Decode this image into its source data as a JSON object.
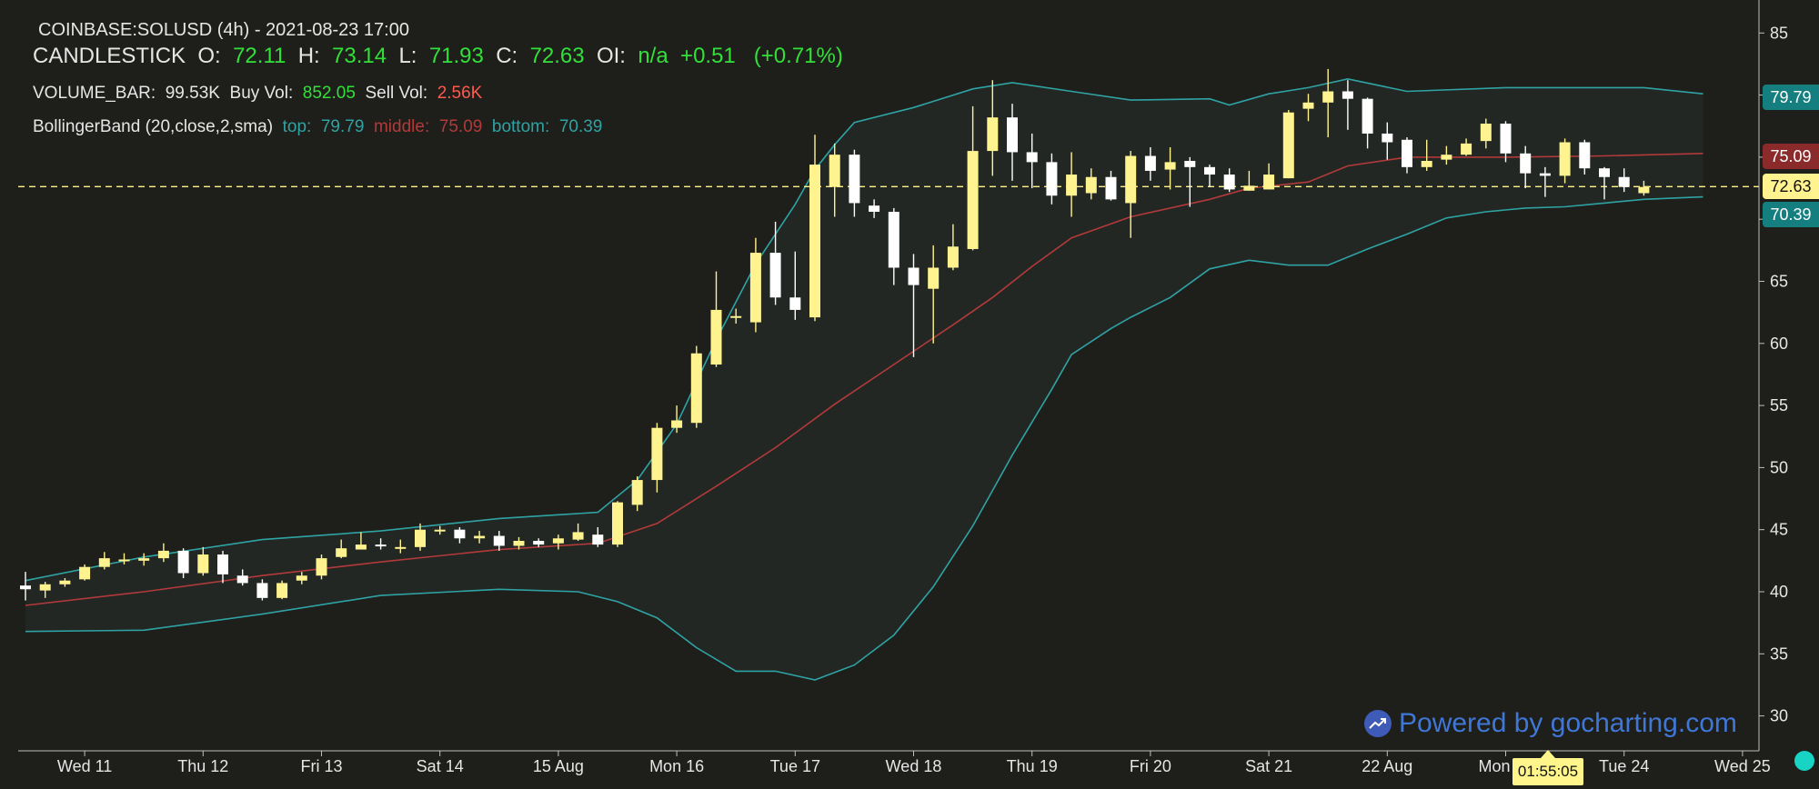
{
  "legend": {
    "symbol_line": "COINBASE:SOLUSD (4h) - 2021-08-23 17:00",
    "candle_label": "CANDLESTICK",
    "o_label": "O:",
    "o_value": "72.11",
    "h_label": "H:",
    "h_value": "73.14",
    "l_label": "L:",
    "l_value": "71.93",
    "c_label": "C:",
    "c_value": "72.63",
    "oi_label": "OI:",
    "oi_value": "n/a",
    "change": "+0.51",
    "change_pct": "(+0.71%)",
    "vol_label": "VOLUME_BAR:",
    "vol_value": "99.53K",
    "buy_label": "Buy Vol:",
    "buy_value": "852.05",
    "sell_label": "Sell Vol:",
    "sell_value": "2.56K",
    "bb_label": "BollingerBand (20,close,2,sma)",
    "bb_top_label": "top:",
    "bb_top": "79.79",
    "bb_mid_label": "middle:",
    "bb_mid": "75.09",
    "bb_bot_label": "bottom:",
    "bb_bot": "70.39"
  },
  "price_tags": {
    "top": "79.79",
    "middle": "75.09",
    "last": "72.63",
    "bottom": "70.39"
  },
  "crosshair_time": "01:55:05",
  "branding": "Powered by gocharting.com",
  "colors": {
    "background": "#1e1e1a",
    "bullish": "#fff38f",
    "bearish": "#ffffff",
    "band_outer": "#2fa3a4",
    "band_middle": "#b23a3a",
    "last_price": "#fff38f",
    "up_text": "#33e03a",
    "down_text": "#ff5a4e"
  },
  "chart_data": {
    "type": "candlestick",
    "title": "COINBASE:SOLUSD (4h)",
    "interval": "4h",
    "y_axis": {
      "min": 30,
      "max": 85,
      "ticks": [
        30,
        35,
        40,
        45,
        50,
        55,
        60,
        65,
        70,
        75,
        80,
        85
      ],
      "position": "right"
    },
    "x_axis": {
      "ticks": [
        {
          "label": "Wed 11",
          "index": 3
        },
        {
          "label": "Thu 12",
          "index": 9
        },
        {
          "label": "Fri 13",
          "index": 15
        },
        {
          "label": "Sat 14",
          "index": 21
        },
        {
          "label": "15 Aug",
          "index": 27
        },
        {
          "label": "Mon 16",
          "index": 33
        },
        {
          "label": "Tue 17",
          "index": 39
        },
        {
          "label": "Wed 18",
          "index": 45
        },
        {
          "label": "Thu 19",
          "index": 51
        },
        {
          "label": "Fri 20",
          "index": 57
        },
        {
          "label": "Sat 21",
          "index": 63
        },
        {
          "label": "22 Aug",
          "index": 69
        },
        {
          "label": "Mon 23",
          "index": 75
        },
        {
          "label": "Tue 24",
          "index": 81
        },
        {
          "label": "Wed 25",
          "index": 87
        }
      ]
    },
    "candles": [
      [
        40.5,
        40.2,
        41.6,
        39.3
      ],
      [
        40.1,
        40.6,
        40.8,
        39.5
      ],
      [
        40.6,
        40.9,
        41.1,
        40.4
      ],
      [
        41.0,
        42.0,
        42.2,
        40.9
      ],
      [
        42.0,
        42.7,
        43.2,
        41.8
      ],
      [
        42.6,
        42.6,
        43.1,
        42.2
      ],
      [
        42.5,
        42.7,
        43.1,
        42.1
      ],
      [
        42.7,
        43.3,
        43.9,
        42.4
      ],
      [
        43.3,
        41.5,
        43.5,
        41.1
      ],
      [
        41.5,
        43.0,
        43.6,
        41.3
      ],
      [
        43.0,
        41.4,
        43.3,
        40.7
      ],
      [
        41.3,
        40.7,
        41.8,
        40.5
      ],
      [
        40.7,
        39.5,
        41.0,
        39.3
      ],
      [
        39.5,
        40.7,
        40.9,
        39.4
      ],
      [
        40.9,
        41.3,
        41.6,
        40.6
      ],
      [
        41.3,
        42.7,
        43.0,
        41.0
      ],
      [
        42.8,
        43.5,
        44.2,
        42.7
      ],
      [
        43.4,
        43.8,
        44.8,
        43.4
      ],
      [
        43.8,
        43.7,
        44.3,
        43.4
      ],
      [
        43.6,
        43.6,
        44.2,
        43.1
      ],
      [
        43.6,
        45.0,
        45.5,
        43.3
      ],
      [
        45.0,
        45.0,
        45.3,
        44.6
      ],
      [
        45.0,
        44.3,
        45.2,
        43.9
      ],
      [
        44.3,
        44.5,
        44.9,
        43.9
      ],
      [
        44.5,
        43.7,
        44.9,
        43.3
      ],
      [
        43.7,
        44.1,
        44.4,
        43.4
      ],
      [
        44.1,
        43.8,
        44.3,
        43.6
      ],
      [
        43.9,
        44.3,
        44.6,
        43.4
      ],
      [
        44.2,
        44.8,
        45.5,
        44.1
      ],
      [
        44.6,
        43.8,
        45.2,
        43.6
      ],
      [
        43.8,
        47.2,
        47.3,
        43.6
      ],
      [
        47.0,
        49.0,
        49.3,
        46.5
      ],
      [
        49.0,
        53.2,
        53.6,
        48.0
      ],
      [
        53.2,
        53.8,
        55.0,
        52.8
      ],
      [
        53.6,
        59.2,
        59.8,
        53.2
      ],
      [
        58.3,
        62.7,
        65.8,
        58.1
      ],
      [
        62.1,
        62.2,
        62.8,
        61.6
      ],
      [
        61.7,
        67.3,
        68.5,
        60.9
      ],
      [
        67.3,
        63.7,
        69.8,
        63.1
      ],
      [
        63.7,
        62.7,
        67.4,
        61.9
      ],
      [
        62.1,
        74.4,
        76.8,
        61.8
      ],
      [
        72.6,
        75.2,
        76.1,
        70.2
      ],
      [
        75.2,
        71.3,
        75.6,
        70.2
      ],
      [
        71.1,
        70.6,
        71.6,
        70.1
      ],
      [
        70.6,
        66.1,
        70.9,
        64.7
      ],
      [
        66.1,
        64.7,
        67.2,
        58.9
      ],
      [
        64.4,
        66.1,
        67.9,
        60.0
      ],
      [
        66.1,
        67.8,
        69.6,
        65.9
      ],
      [
        67.6,
        75.5,
        79.1,
        67.5
      ],
      [
        75.5,
        78.2,
        81.2,
        73.5
      ],
      [
        78.2,
        75.4,
        79.3,
        73.1
      ],
      [
        75.4,
        74.6,
        76.9,
        72.5
      ],
      [
        74.6,
        71.9,
        75.3,
        71.2
      ],
      [
        71.9,
        73.6,
        75.4,
        70.2
      ],
      [
        72.1,
        73.4,
        74.1,
        71.6
      ],
      [
        73.4,
        71.6,
        73.9,
        71.5
      ],
      [
        71.3,
        75.1,
        75.5,
        68.5
      ],
      [
        75.1,
        73.9,
        75.8,
        73.1
      ],
      [
        74.0,
        74.6,
        75.8,
        72.4
      ],
      [
        74.7,
        74.2,
        75.0,
        71.0
      ],
      [
        74.2,
        73.6,
        74.4,
        72.6
      ],
      [
        73.6,
        72.4,
        74.1,
        72.2
      ],
      [
        72.3,
        72.7,
        73.9,
        72.3
      ],
      [
        72.4,
        73.6,
        74.5,
        72.4
      ],
      [
        73.3,
        78.6,
        78.8,
        73.3
      ],
      [
        78.9,
        79.4,
        80.1,
        77.9
      ],
      [
        79.4,
        80.3,
        82.1,
        76.6
      ],
      [
        80.3,
        79.7,
        81.2,
        77.2
      ],
      [
        79.7,
        76.9,
        79.8,
        75.7
      ],
      [
        76.9,
        76.2,
        77.8,
        74.8
      ],
      [
        76.4,
        74.2,
        76.6,
        73.7
      ],
      [
        74.2,
        74.7,
        76.4,
        73.9
      ],
      [
        74.8,
        75.2,
        75.9,
        74.4
      ],
      [
        75.2,
        76.1,
        76.5,
        75.1
      ],
      [
        76.3,
        77.7,
        78.1,
        75.7
      ],
      [
        77.7,
        75.3,
        77.9,
        74.6
      ],
      [
        75.3,
        73.7,
        75.9,
        72.5
      ],
      [
        73.7,
        73.5,
        74.2,
        71.8
      ],
      [
        73.5,
        76.2,
        76.5,
        72.9
      ],
      [
        76.2,
        74.1,
        76.4,
        73.6
      ],
      [
        74.1,
        73.4,
        74.2,
        71.6
      ],
      [
        73.4,
        72.6,
        74.1,
        72.2
      ],
      [
        72.1,
        72.6,
        73.1,
        71.9
      ]
    ],
    "bollinger_top": [
      [
        0,
        40.9
      ],
      [
        6,
        42.8
      ],
      [
        12,
        44.2
      ],
      [
        18,
        44.9
      ],
      [
        24,
        45.9
      ],
      [
        29,
        46.4
      ],
      [
        31,
        49.0
      ],
      [
        33,
        53.5
      ],
      [
        35,
        60.3
      ],
      [
        37,
        66.4
      ],
      [
        39,
        71.2
      ],
      [
        40,
        74.0
      ],
      [
        41,
        76.0
      ],
      [
        42,
        77.8
      ],
      [
        45,
        79.0
      ],
      [
        48,
        80.5
      ],
      [
        50,
        81.0
      ],
      [
        53,
        80.3
      ],
      [
        56,
        79.6
      ],
      [
        60,
        79.7
      ],
      [
        61,
        79.2
      ],
      [
        63,
        80.1
      ],
      [
        65,
        80.6
      ],
      [
        67,
        81.3
      ],
      [
        70,
        80.3
      ],
      [
        75,
        80.6
      ],
      [
        82,
        80.6
      ],
      [
        85,
        80.1
      ]
    ],
    "bollinger_middle": [
      [
        0,
        38.9
      ],
      [
        6,
        40.0
      ],
      [
        12,
        41.3
      ],
      [
        18,
        42.4
      ],
      [
        24,
        43.4
      ],
      [
        29,
        43.9
      ],
      [
        32,
        45.5
      ],
      [
        35,
        48.5
      ],
      [
        38,
        51.6
      ],
      [
        41,
        55.1
      ],
      [
        44,
        58.3
      ],
      [
        47,
        61.5
      ],
      [
        49,
        63.7
      ],
      [
        51,
        66.2
      ],
      [
        53,
        68.5
      ],
      [
        56,
        70.2
      ],
      [
        60,
        71.6
      ],
      [
        62,
        72.5
      ],
      [
        65,
        73.0
      ],
      [
        67,
        74.3
      ],
      [
        70,
        75.0
      ],
      [
        75,
        75.0
      ],
      [
        80,
        75.1
      ],
      [
        85,
        75.3
      ]
    ],
    "bollinger_bottom": [
      [
        0,
        36.8
      ],
      [
        6,
        36.9
      ],
      [
        12,
        38.2
      ],
      [
        18,
        39.7
      ],
      [
        24,
        40.2
      ],
      [
        28,
        40.0
      ],
      [
        30,
        39.2
      ],
      [
        32,
        37.9
      ],
      [
        34,
        35.5
      ],
      [
        36,
        33.6
      ],
      [
        38,
        33.6
      ],
      [
        40,
        32.9
      ],
      [
        42,
        34.1
      ],
      [
        44,
        36.5
      ],
      [
        46,
        40.4
      ],
      [
        48,
        45.3
      ],
      [
        50,
        51.0
      ],
      [
        52,
        56.3
      ],
      [
        53,
        59.1
      ],
      [
        55,
        61.2
      ],
      [
        56,
        62.1
      ],
      [
        58,
        63.7
      ],
      [
        60,
        66.0
      ],
      [
        62,
        66.7
      ],
      [
        64,
        66.3
      ],
      [
        66,
        66.3
      ],
      [
        68,
        67.6
      ],
      [
        70,
        68.8
      ],
      [
        72,
        70.1
      ],
      [
        74,
        70.6
      ],
      [
        76,
        70.9
      ],
      [
        78,
        71.0
      ],
      [
        80,
        71.3
      ],
      [
        82,
        71.6
      ],
      [
        85,
        71.8
      ]
    ],
    "last_price": 72.63,
    "legend_position": "top-left"
  }
}
